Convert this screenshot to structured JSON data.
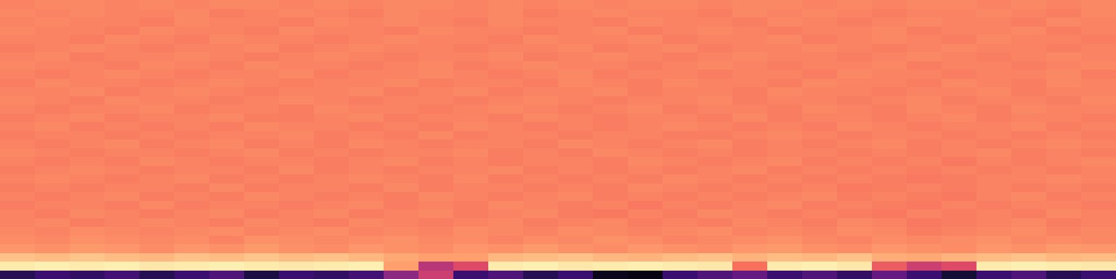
{
  "chart_data": {
    "type": "heatmap",
    "color": "magma",
    "tick_labels": false,
    "zlim": [
      0,
      1
    ],
    "z": [
      [
        0.15,
        0.2,
        0.18,
        0.22,
        0.15,
        0.2,
        0.25,
        0.12,
        0.2,
        0.18,
        0.22,
        0.4,
        0.55,
        0.2,
        0.25,
        0.15,
        0.2,
        0.05,
        0.03,
        0.2,
        0.25,
        0.3,
        0.2,
        0.25,
        0.18,
        0.3,
        0.2,
        0.1,
        0.2,
        0.25,
        0.15,
        0.2
      ],
      [
        0.96,
        0.97,
        0.96,
        0.97,
        0.95,
        0.96,
        0.97,
        0.96,
        0.95,
        0.96,
        0.97,
        0.8,
        0.5,
        0.6,
        0.96,
        0.97,
        0.95,
        0.96,
        0.97,
        0.96,
        0.95,
        0.7,
        0.96,
        0.97,
        0.95,
        0.65,
        0.55,
        0.6,
        0.96,
        0.97,
        0.96,
        0.95
      ],
      [
        0.87,
        0.86,
        0.88,
        0.86,
        0.85,
        0.87,
        0.86,
        0.88,
        0.86,
        0.87,
        0.85,
        0.82,
        0.8,
        0.8,
        0.85,
        0.86,
        0.87,
        0.85,
        0.84,
        0.86,
        0.87,
        0.84,
        0.86,
        0.85,
        0.87,
        0.83,
        0.82,
        0.84,
        0.86,
        0.87,
        0.85,
        0.86
      ],
      [
        0.78,
        0.77,
        0.79,
        0.78,
        0.76,
        0.78,
        0.77,
        0.79,
        0.77,
        0.76,
        0.78,
        0.77,
        0.76,
        0.78,
        0.77,
        0.79,
        0.77,
        0.76,
        0.78,
        0.77,
        0.76,
        0.78,
        0.79,
        0.77,
        0.76,
        0.78,
        0.77,
        0.76,
        0.78,
        0.77,
        0.79,
        0.78
      ],
      [
        0.76,
        0.75,
        0.77,
        0.76,
        0.75,
        0.76,
        0.74,
        0.77,
        0.76,
        0.75,
        0.76,
        0.77,
        0.75,
        0.76,
        0.74,
        0.76,
        0.75,
        0.77,
        0.76,
        0.74,
        0.75,
        0.76,
        0.77,
        0.75,
        0.74,
        0.76,
        0.75,
        0.76,
        0.77,
        0.75,
        0.76,
        0.75
      ],
      [
        0.75,
        0.74,
        0.76,
        0.75,
        0.74,
        0.75,
        0.76,
        0.74,
        0.75,
        0.76,
        0.74,
        0.75,
        0.74,
        0.76,
        0.75,
        0.74,
        0.76,
        0.75,
        0.74,
        0.75,
        0.76,
        0.74,
        0.75,
        0.74,
        0.76,
        0.75,
        0.73,
        0.74,
        0.75,
        0.76,
        0.74,
        0.75
      ],
      [
        0.74,
        0.75,
        0.73,
        0.74,
        0.75,
        0.74,
        0.73,
        0.75,
        0.74,
        0.73,
        0.75,
        0.74,
        0.73,
        0.74,
        0.75,
        0.73,
        0.74,
        0.75,
        0.73,
        0.74,
        0.73,
        0.75,
        0.74,
        0.73,
        0.75,
        0.74,
        0.72,
        0.73,
        0.74,
        0.75,
        0.73,
        0.74
      ],
      [
        0.74,
        0.73,
        0.75,
        0.74,
        0.73,
        0.74,
        0.75,
        0.73,
        0.74,
        0.75,
        0.73,
        0.74,
        0.75,
        0.73,
        0.74,
        0.75,
        0.73,
        0.72,
        0.74,
        0.73,
        0.75,
        0.74,
        0.73,
        0.74,
        0.73,
        0.72,
        0.74,
        0.73,
        0.74,
        0.73,
        0.75,
        0.74
      ],
      [
        0.73,
        0.74,
        0.74,
        0.73,
        0.75,
        0.73,
        0.74,
        0.74,
        0.73,
        0.74,
        0.75,
        0.73,
        0.74,
        0.73,
        0.75,
        0.74,
        0.73,
        0.74,
        0.72,
        0.74,
        0.73,
        0.74,
        0.75,
        0.73,
        0.74,
        0.73,
        0.72,
        0.74,
        0.73,
        0.74,
        0.74,
        0.73
      ],
      [
        0.74,
        0.73,
        0.74,
        0.75,
        0.73,
        0.74,
        0.73,
        0.75,
        0.74,
        0.73,
        0.74,
        0.73,
        0.75,
        0.74,
        0.73,
        0.74,
        0.75,
        0.73,
        0.74,
        0.73,
        0.74,
        0.73,
        0.74,
        0.75,
        0.73,
        0.74,
        0.73,
        0.72,
        0.74,
        0.75,
        0.73,
        0.74
      ],
      [
        0.73,
        0.74,
        0.73,
        0.74,
        0.74,
        0.73,
        0.75,
        0.73,
        0.74,
        0.74,
        0.73,
        0.75,
        0.73,
        0.74,
        0.74,
        0.73,
        0.74,
        0.73,
        0.75,
        0.74,
        0.73,
        0.74,
        0.73,
        0.74,
        0.72,
        0.73,
        0.74,
        0.73,
        0.74,
        0.73,
        0.74,
        0.73
      ],
      [
        0.74,
        0.75,
        0.74,
        0.73,
        0.74,
        0.75,
        0.73,
        0.74,
        0.73,
        0.74,
        0.75,
        0.74,
        0.73,
        0.75,
        0.73,
        0.74,
        0.73,
        0.74,
        0.73,
        0.75,
        0.74,
        0.73,
        0.74,
        0.73,
        0.74,
        0.73,
        0.72,
        0.73,
        0.74,
        0.74,
        0.75,
        0.74
      ],
      [
        0.73,
        0.74,
        0.75,
        0.74,
        0.73,
        0.74,
        0.74,
        0.73,
        0.75,
        0.73,
        0.74,
        0.73,
        0.74,
        0.74,
        0.75,
        0.73,
        0.74,
        0.73,
        0.74,
        0.73,
        0.74,
        0.75,
        0.73,
        0.74,
        0.73,
        0.74,
        0.73,
        0.74,
        0.73,
        0.74,
        0.73,
        0.74
      ],
      [
        0.74,
        0.73,
        0.74,
        0.73,
        0.75,
        0.74,
        0.73,
        0.74,
        0.74,
        0.73,
        0.74,
        0.75,
        0.73,
        0.74,
        0.73,
        0.74,
        0.74,
        0.73,
        0.75,
        0.74,
        0.73,
        0.74,
        0.75,
        0.73,
        0.74,
        0.73,
        0.74,
        0.72,
        0.74,
        0.73,
        0.74,
        0.75
      ],
      [
        0.75,
        0.74,
        0.73,
        0.74,
        0.74,
        0.73,
        0.74,
        0.75,
        0.73,
        0.74,
        0.73,
        0.74,
        0.74,
        0.75,
        0.73,
        0.74,
        0.73,
        0.75,
        0.74,
        0.73,
        0.74,
        0.73,
        0.74,
        0.74,
        0.73,
        0.74,
        0.73,
        0.74,
        0.75,
        0.73,
        0.74,
        0.73
      ],
      [
        0.74,
        0.73,
        0.74,
        0.75,
        0.73,
        0.74,
        0.75,
        0.73,
        0.74,
        0.73,
        0.75,
        0.74,
        0.73,
        0.74,
        0.74,
        0.73,
        0.75,
        0.74,
        0.73,
        0.74,
        0.75,
        0.73,
        0.74,
        0.73,
        0.74,
        0.75,
        0.73,
        0.74,
        0.73,
        0.74,
        0.75,
        0.74
      ],
      [
        0.73,
        0.74,
        0.74,
        0.73,
        0.74,
        0.73,
        0.74,
        0.74,
        0.75,
        0.73,
        0.74,
        0.73,
        0.75,
        0.73,
        0.74,
        0.74,
        0.73,
        0.74,
        0.74,
        0.73,
        0.73,
        0.74,
        0.75,
        0.74,
        0.73,
        0.74,
        0.74,
        0.73,
        0.74,
        0.73,
        0.74,
        0.73
      ],
      [
        0.74,
        0.75,
        0.73,
        0.74,
        0.73,
        0.74,
        0.73,
        0.75,
        0.74,
        0.74,
        0.73,
        0.74,
        0.73,
        0.75,
        0.74,
        0.73,
        0.74,
        0.73,
        0.74,
        0.75,
        0.74,
        0.73,
        0.74,
        0.73,
        0.75,
        0.74,
        0.73,
        0.74,
        0.74,
        0.75,
        0.73,
        0.74
      ],
      [
        0.73,
        0.74,
        0.75,
        0.73,
        0.74,
        0.74,
        0.75,
        0.73,
        0.73,
        0.74,
        0.75,
        0.73,
        0.74,
        0.74,
        0.73,
        0.75,
        0.74,
        0.73,
        0.74,
        0.74,
        0.73,
        0.75,
        0.73,
        0.74,
        0.74,
        0.73,
        0.74,
        0.75,
        0.73,
        0.74,
        0.74,
        0.73
      ],
      [
        0.74,
        0.73,
        0.74,
        0.74,
        0.75,
        0.73,
        0.74,
        0.74,
        0.73,
        0.75,
        0.74,
        0.74,
        0.73,
        0.74,
        0.75,
        0.74,
        0.73,
        0.74,
        0.75,
        0.73,
        0.74,
        0.74,
        0.73,
        0.75,
        0.74,
        0.73,
        0.75,
        0.74,
        0.73,
        0.75,
        0.74,
        0.74
      ],
      [
        0.75,
        0.74,
        0.73,
        0.75,
        0.74,
        0.74,
        0.73,
        0.74,
        0.75,
        0.74,
        0.73,
        0.74,
        0.74,
        0.73,
        0.74,
        0.75,
        0.74,
        0.73,
        0.74,
        0.74,
        0.75,
        0.73,
        0.74,
        0.74,
        0.73,
        0.74,
        0.75,
        0.73,
        0.74,
        0.74,
        0.73,
        0.75
      ],
      [
        0.74,
        0.74,
        0.75,
        0.73,
        0.74,
        0.75,
        0.74,
        0.73,
        0.74,
        0.74,
        0.75,
        0.73,
        0.74,
        0.75,
        0.73,
        0.74,
        0.74,
        0.75,
        0.73,
        0.74,
        0.74,
        0.73,
        0.75,
        0.74,
        0.74,
        0.73,
        0.74,
        0.74,
        0.75,
        0.73,
        0.74,
        0.74
      ],
      [
        0.73,
        0.75,
        0.74,
        0.74,
        0.73,
        0.74,
        0.75,
        0.74,
        0.73,
        0.74,
        0.74,
        0.75,
        0.73,
        0.74,
        0.74,
        0.73,
        0.75,
        0.74,
        0.73,
        0.75,
        0.74,
        0.74,
        0.73,
        0.75,
        0.74,
        0.74,
        0.73,
        0.75,
        0.74,
        0.73,
        0.75,
        0.74
      ],
      [
        0.74,
        0.73,
        0.74,
        0.75,
        0.74,
        0.73,
        0.74,
        0.74,
        0.75,
        0.73,
        0.74,
        0.74,
        0.75,
        0.74,
        0.73,
        0.74,
        0.75,
        0.73,
        0.74,
        0.74,
        0.73,
        0.74,
        0.74,
        0.73,
        0.75,
        0.74,
        0.74,
        0.73,
        0.74,
        0.74,
        0.75,
        0.73
      ],
      [
        0.75,
        0.74,
        0.74,
        0.73,
        0.75,
        0.74,
        0.73,
        0.75,
        0.74,
        0.74,
        0.73,
        0.74,
        0.75,
        0.73,
        0.74,
        0.75,
        0.74,
        0.74,
        0.73,
        0.74,
        0.75,
        0.74,
        0.73,
        0.74,
        0.74,
        0.75,
        0.73,
        0.74,
        0.74,
        0.73,
        0.74,
        0.75
      ],
      [
        0.74,
        0.75,
        0.73,
        0.74,
        0.74,
        0.75,
        0.74,
        0.73,
        0.74,
        0.75,
        0.74,
        0.73,
        0.74,
        0.74,
        0.75,
        0.73,
        0.74,
        0.75,
        0.74,
        0.73,
        0.74,
        0.75,
        0.74,
        0.74,
        0.73,
        0.74,
        0.75,
        0.74,
        0.73,
        0.74,
        0.75,
        0.74
      ],
      [
        0.73,
        0.74,
        0.75,
        0.74,
        0.73,
        0.74,
        0.74,
        0.75,
        0.73,
        0.74,
        0.75,
        0.74,
        0.74,
        0.73,
        0.74,
        0.74,
        0.75,
        0.73,
        0.74,
        0.75,
        0.73,
        0.74,
        0.74,
        0.75,
        0.74,
        0.73,
        0.74,
        0.75,
        0.74,
        0.74,
        0.73,
        0.74
      ],
      [
        0.74,
        0.74,
        0.73,
        0.75,
        0.74,
        0.73,
        0.75,
        0.74,
        0.74,
        0.73,
        0.74,
        0.75,
        0.74,
        0.74,
        0.73,
        0.75,
        0.74,
        0.74,
        0.75,
        0.73,
        0.74,
        0.74,
        0.75,
        0.73,
        0.74,
        0.75,
        0.74,
        0.73,
        0.75,
        0.74,
        0.74,
        0.73
      ],
      [
        0.75,
        0.74,
        0.74,
        0.73,
        0.75,
        0.74,
        0.74,
        0.73,
        0.75,
        0.74,
        0.74,
        0.73,
        0.75,
        0.74,
        0.74,
        0.73,
        0.74,
        0.75,
        0.73,
        0.74,
        0.75,
        0.74,
        0.73,
        0.74,
        0.74,
        0.75,
        0.73,
        0.74,
        0.74,
        0.75,
        0.73,
        0.74
      ],
      [
        0.74,
        0.75,
        0.74,
        0.74,
        0.73,
        0.75,
        0.74,
        0.74,
        0.73,
        0.75,
        0.74,
        0.75,
        0.74,
        0.73,
        0.75,
        0.74,
        0.74,
        0.73,
        0.75,
        0.74,
        0.74,
        0.73,
        0.75,
        0.74,
        0.73,
        0.74,
        0.75,
        0.74,
        0.74,
        0.73,
        0.75,
        0.74
      ],
      [
        0.75,
        0.74,
        0.75,
        0.74,
        0.74,
        0.75,
        0.73,
        0.74,
        0.75,
        0.74,
        0.73,
        0.75,
        0.74,
        0.74,
        0.75,
        0.73,
        0.74,
        0.75,
        0.74,
        0.74,
        0.73,
        0.75,
        0.74,
        0.75,
        0.74,
        0.73,
        0.74,
        0.74,
        0.75,
        0.74,
        0.73,
        0.75
      ],
      [
        0.74,
        0.75,
        0.75,
        0.74,
        0.75,
        0.74,
        0.75,
        0.75,
        0.74,
        0.75,
        0.74,
        0.75,
        0.75,
        0.74,
        0.75,
        0.74,
        0.75,
        0.74,
        0.75,
        0.75,
        0.74,
        0.75,
        0.75,
        0.74,
        0.75,
        0.74,
        0.75,
        0.75,
        0.74,
        0.75,
        0.74,
        0.75
      ]
    ]
  }
}
